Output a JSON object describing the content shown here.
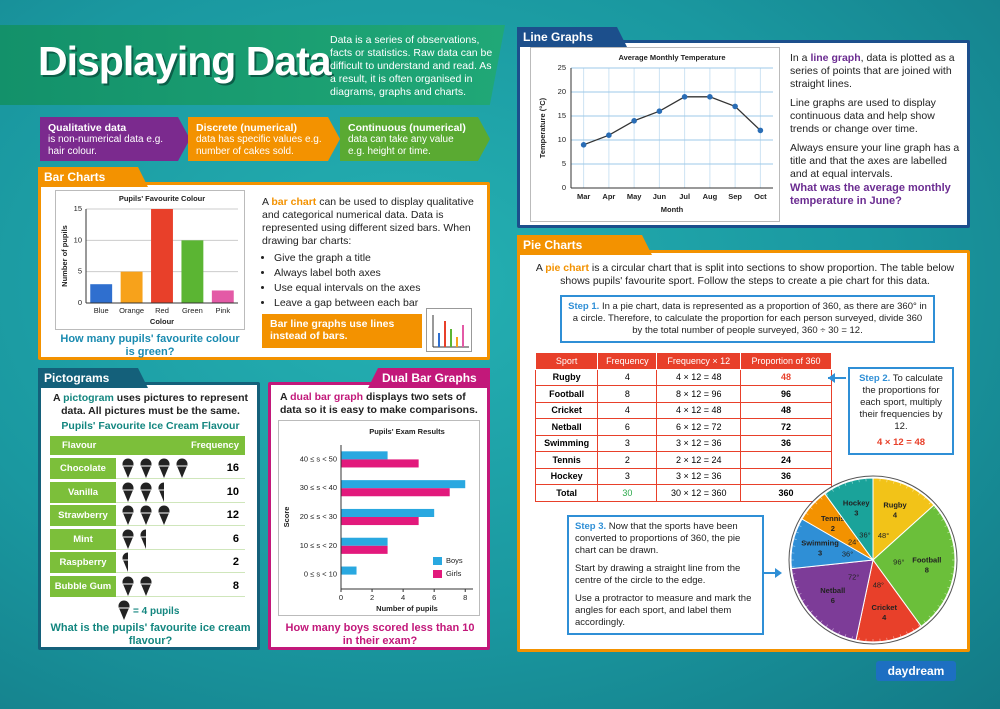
{
  "header": {
    "title": "Displaying Data",
    "intro": "Data is a series of observations, facts or statistics. Raw data can be difficult to understand and read. As a result, it is often organised in diagrams, graphs and charts."
  },
  "data_types": [
    {
      "term": "Qualitative data",
      "text": "is non-numerical data e.g. hair colour."
    },
    {
      "term": "Discrete (numerical)",
      "text": "data has specific values e.g. number of cakes sold."
    },
    {
      "term": "Continuous (numerical)",
      "text": "data can take any value e.g. height or time."
    }
  ],
  "bar_section": {
    "heading": "Bar Charts",
    "text": [
      "A ",
      "bar chart",
      " can be used to display qualitative and categorical numerical data. Data is represented using different sized bars. When drawing bar charts:"
    ],
    "bullets": [
      "Give the graph a title",
      "Always label both axes",
      "Use equal intervals on the axes",
      "Leave a gap between each bar"
    ],
    "tip": "Bar line graphs use lines instead of bars.",
    "question": "How many pupils' favourite colour is green?"
  },
  "pictogram": {
    "heading": "Pictograms",
    "text": [
      "A ",
      "pictogram",
      " uses pictures to represent data. All pictures must be the same."
    ],
    "title": "Pupils' Favourite Ice Cream Flavour",
    "columns": [
      "Flavour",
      "Frequency"
    ],
    "rows": [
      [
        "Chocolate",
        16
      ],
      [
        "Vanilla",
        10
      ],
      [
        "Strawberry",
        12
      ],
      [
        "Mint",
        6
      ],
      [
        "Raspberry",
        2
      ],
      [
        "Bubble Gum",
        8
      ]
    ],
    "key": {
      "value": 4,
      "label": "= 4 pupils"
    },
    "question": "What is the pupils' favourite ice cream flavour?"
  },
  "line_section": {
    "heading": "Line Graphs",
    "paragraphs": [
      [
        "In a ",
        "line graph",
        ", data is plotted as a series of points that are joined with straight lines."
      ],
      [
        "Line graphs are used to display continuous data and help show trends or change over time."
      ],
      [
        "Always ensure your line graph has a title and that the axes are labelled and at equal intervals."
      ]
    ],
    "question": "What was the average monthly temperature in June?"
  },
  "dual_section": {
    "heading": "Dual Bar Graphs",
    "text": [
      "A ",
      "dual bar graph",
      " displays two sets of data so it is easy to make comparisons."
    ],
    "question": "How many boys scored less than 10 in their exam?"
  },
  "pie_section": {
    "heading": "Pie Charts",
    "intro": [
      "A ",
      "pie chart",
      " is a circular chart that is split into sections to show proportion. The table below shows pupils' favourite sport. Follow the steps to create a pie chart for this data."
    ],
    "step1": {
      "label": "Step 1.",
      "text": "In a pie chart, data is represented as a proportion of 360, as there are 360° in a circle. Therefore, to calculate the proportion for each person surveyed, divide 360 by the total number of people surveyed, 360 ÷ 30 = 12."
    },
    "table": {
      "columns": [
        "Sport",
        "Frequency",
        "Frequency × 12",
        "Proportion of 360"
      ],
      "rows": [
        [
          "Rugby",
          4,
          "4 × 12 = 48",
          48
        ],
        [
          "Football",
          8,
          "8 × 12 = 96",
          96
        ],
        [
          "Cricket",
          4,
          "4 × 12 = 48",
          48
        ],
        [
          "Netball",
          6,
          "6 × 12 = 72",
          72
        ],
        [
          "Swimming",
          3,
          "3 × 12 = 36",
          36
        ],
        [
          "Tennis",
          2,
          "2 × 12 = 24",
          24
        ],
        [
          "Hockey",
          3,
          "3 × 12 = 36",
          36
        ],
        [
          "Total",
          30,
          "30 × 12 = 360",
          360
        ]
      ]
    },
    "step2": {
      "label": "Step 2.",
      "text": "To calculate the proportions for each sport, multiply their frequencies by 12.",
      "example": "4 × 12 = 48"
    },
    "step3": {
      "label": "Step 3.",
      "paragraphs": [
        "Now that the sports have been converted to proportions of 360, the pie chart can be drawn.",
        "Start by drawing a straight line from the centre of the circle to the edge.",
        "Use a protractor to measure and mark the angles for each sport, and label them accordingly."
      ]
    }
  },
  "logo": "daydream",
  "chart_data": [
    {
      "type": "bar",
      "title": "Pupils' Favourite Colour",
      "categories": [
        "Blue",
        "Orange",
        "Red",
        "Green",
        "Pink"
      ],
      "values": [
        3,
        5,
        15,
        10,
        2
      ],
      "colors": [
        "#2f6fcf",
        "#f7a21b",
        "#e8402a",
        "#5bb533",
        "#e35aa6"
      ],
      "ylim": [
        0,
        15
      ],
      "yticks": [
        0,
        5,
        10,
        15
      ],
      "ylabel": "Number of pupils",
      "xlabel": "Colour",
      "grid": true
    },
    {
      "type": "line",
      "title": "Average Monthly Temperature",
      "categories": [
        "Mar",
        "Apr",
        "May",
        "Jun",
        "Jul",
        "Aug",
        "Sep",
        "Oct"
      ],
      "values": [
        9,
        11,
        14,
        16,
        19,
        19,
        17,
        12
      ],
      "color": "#2a6db5",
      "ylim": [
        0,
        25
      ],
      "yticks": [
        0,
        5,
        10,
        15,
        20,
        25
      ],
      "ylabel": "Temperature (°C)",
      "xlabel": "Month",
      "grid": true
    },
    {
      "type": "barh",
      "title": "Pupils' Exam Results",
      "categories": [
        "0 ≤ s < 10",
        "10 ≤ s < 20",
        "20 ≤ s < 30",
        "30 ≤ s < 40",
        "40 ≤ s < 50"
      ],
      "series": [
        {
          "name": "Boys",
          "color": "#29a8e0",
          "values": [
            1,
            3,
            6,
            8,
            3
          ]
        },
        {
          "name": "Girls",
          "color": "#e2197c",
          "values": [
            0,
            3,
            5,
            7,
            5
          ]
        }
      ],
      "xlim": [
        0,
        8.5
      ],
      "xticks": [
        0,
        2,
        4,
        6,
        8
      ],
      "ylabel": "Score",
      "xlabel": "Number of pupils",
      "legend": "lower right"
    },
    {
      "type": "pie",
      "categories": [
        "Rugby",
        "Football",
        "Cricket",
        "Netball",
        "Swimming",
        "Tennis",
        "Hockey"
      ],
      "counts": [
        4,
        8,
        4,
        6,
        3,
        2,
        3
      ],
      "values": [
        48,
        96,
        48,
        72,
        36,
        24,
        36
      ],
      "value_labels": [
        "48°",
        "96°",
        "48°",
        "72°",
        "36°",
        "24°",
        "36°"
      ],
      "colors": [
        "#f2c318",
        "#6bbf3a",
        "#e8402a",
        "#7d3c98",
        "#2f8fd6",
        "#f39200",
        "#1aa39a"
      ]
    }
  ]
}
